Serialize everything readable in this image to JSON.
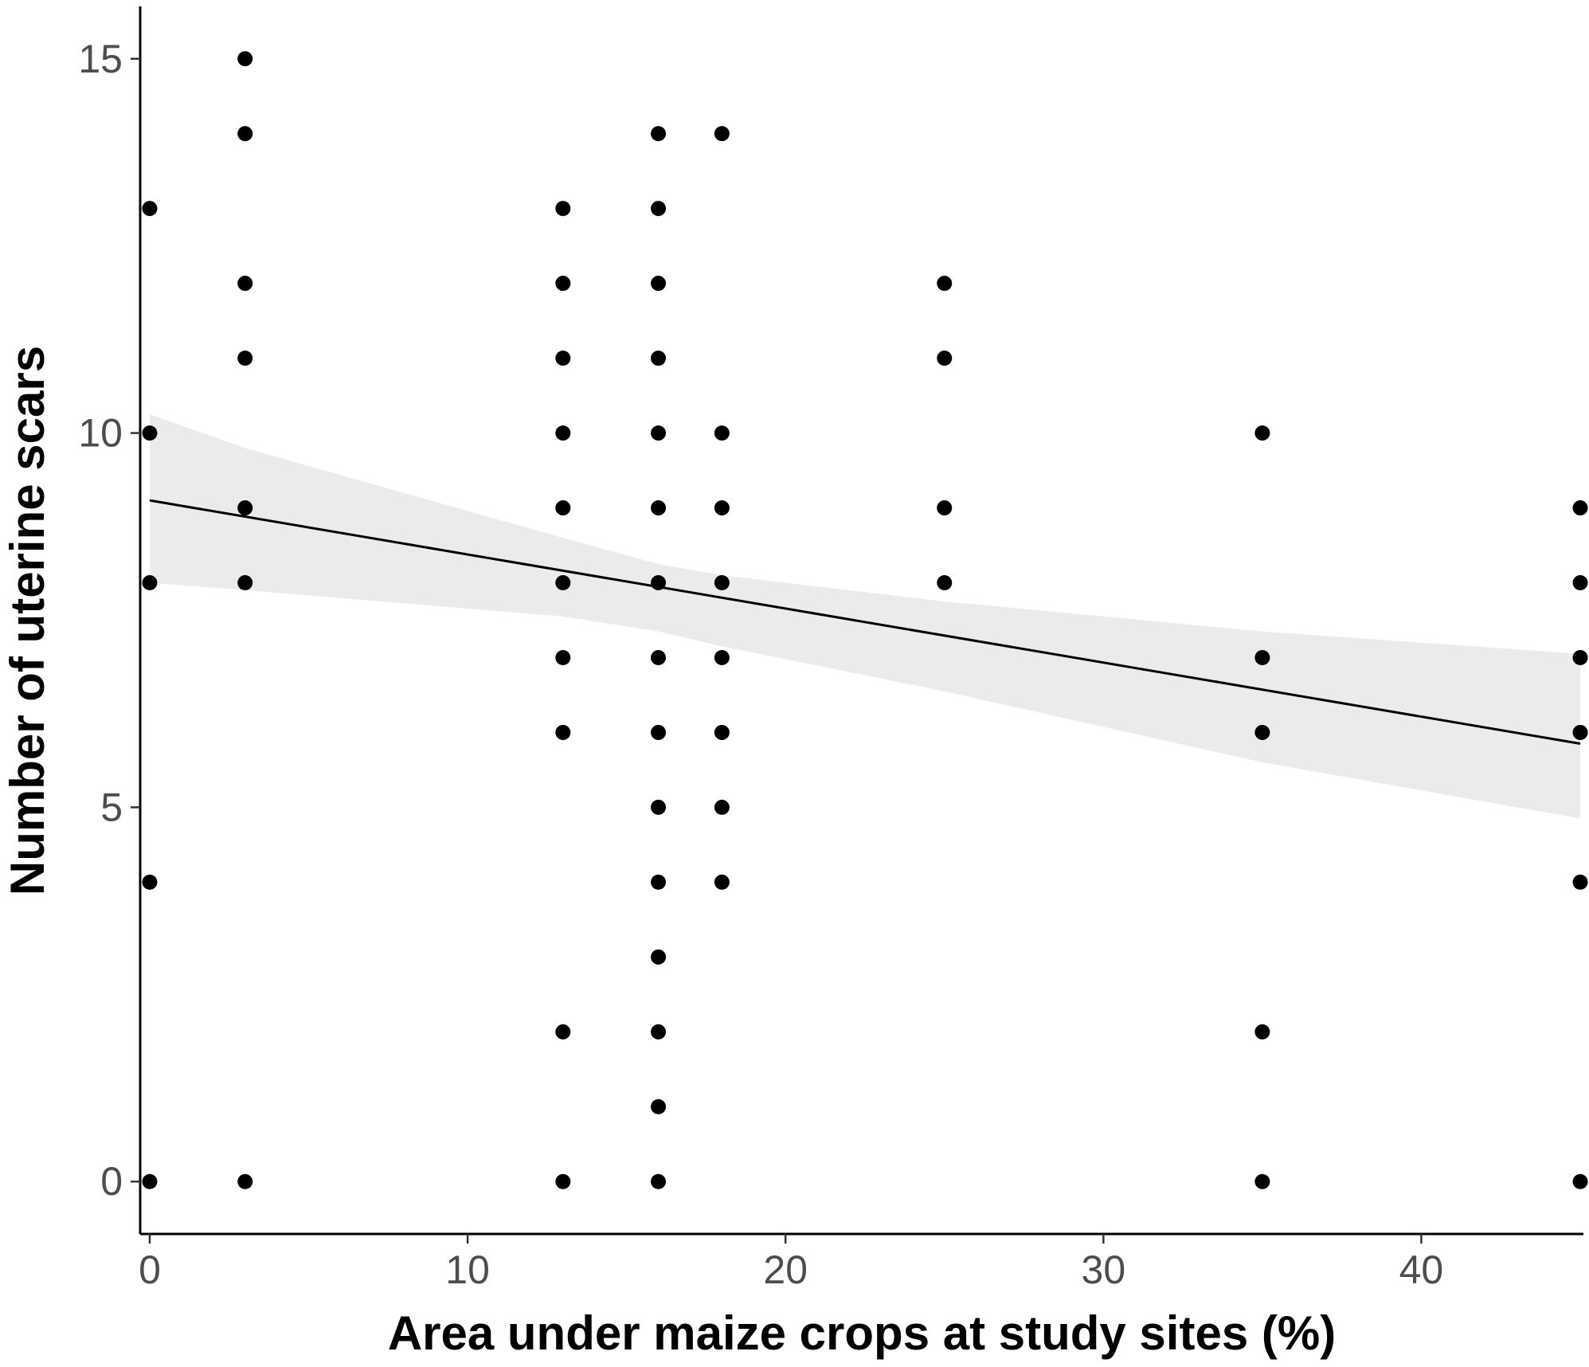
{
  "chart_data": {
    "type": "scatter",
    "title": "",
    "xlabel": "Area under maize crops at study sites (%)",
    "ylabel": "Number of uterine scars",
    "xlim": [
      -0.3,
      45.1
    ],
    "ylim": [
      -0.7,
      15.7
    ],
    "x_ticks": [
      0,
      10,
      20,
      30,
      40
    ],
    "y_ticks": [
      0,
      5,
      10,
      15
    ],
    "x_tick_labels": [
      "0",
      "10",
      "20",
      "30",
      "40"
    ],
    "y_tick_labels": [
      "0",
      "5",
      "10",
      "15"
    ],
    "grid": false,
    "legend": "none",
    "colors": {
      "points": "#000000",
      "fit_line": "#000000",
      "confidence_band": "#ebebeb",
      "tick_text": "#4d4d4d"
    },
    "points": [
      {
        "x": 0,
        "y": 13
      },
      {
        "x": 0,
        "y": 10
      },
      {
        "x": 0,
        "y": 8
      },
      {
        "x": 0,
        "y": 4
      },
      {
        "x": 0,
        "y": 0
      },
      {
        "x": 3,
        "y": 15
      },
      {
        "x": 3,
        "y": 14
      },
      {
        "x": 3,
        "y": 12
      },
      {
        "x": 3,
        "y": 11
      },
      {
        "x": 3,
        "y": 9
      },
      {
        "x": 3,
        "y": 8
      },
      {
        "x": 3,
        "y": 0
      },
      {
        "x": 13,
        "y": 13
      },
      {
        "x": 13,
        "y": 12
      },
      {
        "x": 13,
        "y": 11
      },
      {
        "x": 13,
        "y": 10
      },
      {
        "x": 13,
        "y": 9
      },
      {
        "x": 13,
        "y": 8
      },
      {
        "x": 13,
        "y": 7
      },
      {
        "x": 13,
        "y": 6
      },
      {
        "x": 13,
        "y": 2
      },
      {
        "x": 13,
        "y": 0
      },
      {
        "x": 16,
        "y": 14
      },
      {
        "x": 16,
        "y": 13
      },
      {
        "x": 16,
        "y": 12
      },
      {
        "x": 16,
        "y": 11
      },
      {
        "x": 16,
        "y": 10
      },
      {
        "x": 16,
        "y": 9
      },
      {
        "x": 16,
        "y": 8
      },
      {
        "x": 16,
        "y": 7
      },
      {
        "x": 16,
        "y": 6
      },
      {
        "x": 16,
        "y": 5
      },
      {
        "x": 16,
        "y": 4
      },
      {
        "x": 16,
        "y": 3
      },
      {
        "x": 16,
        "y": 2
      },
      {
        "x": 16,
        "y": 1
      },
      {
        "x": 16,
        "y": 0
      },
      {
        "x": 18,
        "y": 14
      },
      {
        "x": 18,
        "y": 10
      },
      {
        "x": 18,
        "y": 9
      },
      {
        "x": 18,
        "y": 8
      },
      {
        "x": 18,
        "y": 7
      },
      {
        "x": 18,
        "y": 6
      },
      {
        "x": 18,
        "y": 5
      },
      {
        "x": 18,
        "y": 4
      },
      {
        "x": 25,
        "y": 12
      },
      {
        "x": 25,
        "y": 11
      },
      {
        "x": 25,
        "y": 9
      },
      {
        "x": 25,
        "y": 8
      },
      {
        "x": 35,
        "y": 10
      },
      {
        "x": 35,
        "y": 7
      },
      {
        "x": 35,
        "y": 6
      },
      {
        "x": 35,
        "y": 2
      },
      {
        "x": 35,
        "y": 0
      },
      {
        "x": 45,
        "y": 9
      },
      {
        "x": 45,
        "y": 8
      },
      {
        "x": 45,
        "y": 7
      },
      {
        "x": 45,
        "y": 6
      },
      {
        "x": 45,
        "y": 4
      },
      {
        "x": 45,
        "y": 0
      }
    ],
    "fit_line": {
      "x": [
        0,
        45
      ],
      "y": [
        9.1,
        5.85
      ]
    },
    "confidence_band": {
      "x": [
        0,
        3,
        13,
        16,
        18,
        25,
        35,
        45
      ],
      "upper": [
        10.25,
        9.8,
        8.6,
        8.25,
        8.1,
        7.75,
        7.35,
        7.05
      ],
      "lower": [
        8.0,
        7.9,
        7.55,
        7.35,
        7.15,
        6.55,
        5.6,
        4.85
      ]
    }
  }
}
